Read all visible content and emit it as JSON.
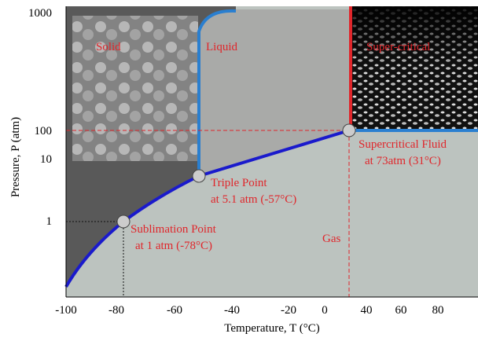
{
  "regions": [
    "Solid",
    "Liquid",
    "Super-critical",
    "Gas"
  ],
  "annotations": [
    {
      "title": "Supercritical Fluid",
      "detail": "at 73atm (31°C)"
    },
    {
      "title": "Triple Point",
      "detail": "at 5.1 atm (-57°C)"
    },
    {
      "title": "Sublimation Point",
      "detail": "at 1 atm (-78°C)"
    }
  ],
  "y_axis": {
    "label": "Pressure, P (atm)",
    "ticks": [
      "1000",
      "100",
      "10",
      "1"
    ]
  },
  "x_axis": {
    "label": "Temperature, T (°C)",
    "ticks": [
      "-100",
      "-80",
      "-60",
      "-40",
      "-20",
      "0",
      "40",
      "60",
      "80"
    ]
  }
}
